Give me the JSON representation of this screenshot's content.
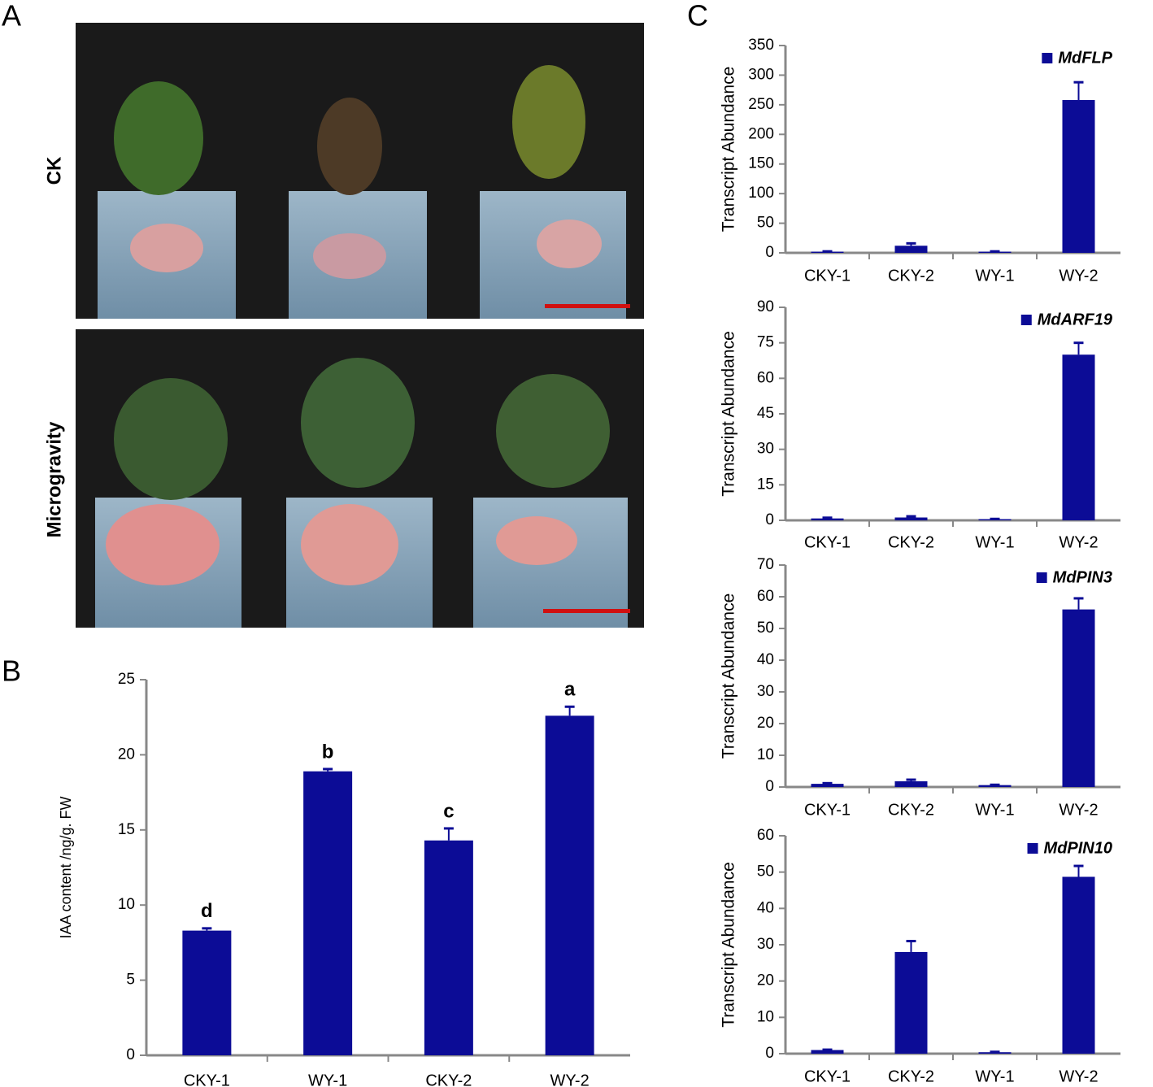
{
  "figure": {
    "panel_labels": [
      "A",
      "B",
      "C"
    ],
    "photo_labels": [
      "CK",
      "Microgravity"
    ]
  },
  "chart_data": [
    {
      "type": "bar",
      "ylabel": "IAA content /ng/g. FW",
      "categories": [
        "CKY-1",
        "WY-1",
        "CKY-2",
        "WY-2"
      ],
      "values": [
        8.3,
        18.9,
        14.3,
        22.6
      ],
      "errors": [
        0.15,
        0.15,
        0.8,
        0.6
      ],
      "annotations": [
        "d",
        "b",
        "c",
        "a"
      ],
      "color": "#0c0c96",
      "ylim": [
        0,
        25
      ],
      "yticks": [
        0,
        5,
        10,
        15,
        20,
        25
      ]
    },
    {
      "type": "bar",
      "ylabel": "Transcript Abundance",
      "categories": [
        "CKY-1",
        "CKY-2",
        "WY-1",
        "WY-2"
      ],
      "series": [
        {
          "name": "MdFLP",
          "color": "#0c0c96",
          "values": [
            2,
            12,
            2,
            258
          ],
          "errors": [
            0.5,
            4,
            0.5,
            30
          ]
        }
      ],
      "ylim": [
        0,
        350
      ],
      "yticks": [
        0,
        50,
        100,
        150,
        200,
        250,
        300,
        350
      ],
      "legend": "upper right"
    },
    {
      "type": "bar",
      "ylabel": "Transcript Abundance",
      "categories": [
        "CKY-1",
        "CKY-2",
        "WY-1",
        "WY-2"
      ],
      "series": [
        {
          "name": "MdARF19",
          "color": "#0c0c96",
          "values": [
            0.8,
            1.2,
            0.5,
            70
          ],
          "errors": [
            0.3,
            0.5,
            0.1,
            5
          ]
        }
      ],
      "ylim": [
        0,
        90
      ],
      "yticks": [
        0,
        15,
        30,
        45,
        60,
        75,
        90
      ],
      "legend": "upper right"
    },
    {
      "type": "bar",
      "ylabel": "Transcript Abundance",
      "categories": [
        "CKY-1",
        "CKY-2",
        "WY-1",
        "WY-2"
      ],
      "series": [
        {
          "name": "MdPIN3",
          "color": "#0c0c96",
          "values": [
            1.0,
            1.8,
            0.6,
            56
          ],
          "errors": [
            0.2,
            0.5,
            0.1,
            3.5
          ]
        }
      ],
      "ylim": [
        0,
        70
      ],
      "yticks": [
        0,
        10,
        20,
        30,
        40,
        50,
        60,
        70
      ],
      "legend": "upper right"
    },
    {
      "type": "bar",
      "ylabel": "Transcript Abundance",
      "categories": [
        "CKY-1",
        "CKY-2",
        "WY-1",
        "WY-2"
      ],
      "series": [
        {
          "name": "MdPIN10",
          "color": "#0c0c96",
          "values": [
            1.0,
            28,
            0.4,
            48.7
          ],
          "errors": [
            0.1,
            3,
            0.1,
            3
          ]
        }
      ],
      "ylim": [
        0,
        60
      ],
      "yticks": [
        0,
        10,
        20,
        30,
        40,
        50,
        60
      ],
      "legend": "upper right"
    }
  ]
}
